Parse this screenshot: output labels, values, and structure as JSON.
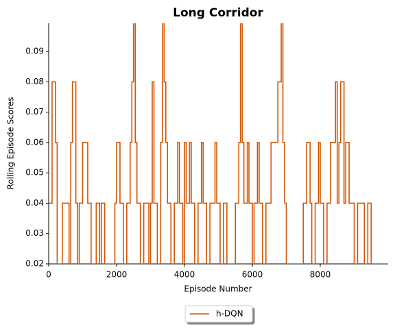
{
  "chart_data": {
    "type": "line",
    "title": "Long Corridor",
    "xlabel": "Episode Number",
    "ylabel": "Rolling Episode Scores",
    "step": "post",
    "x": [
      0,
      60,
      100,
      200,
      250,
      400,
      600,
      650,
      700,
      800,
      850,
      900,
      1000,
      1150,
      1250,
      1400,
      1500,
      1550,
      1650,
      1950,
      2000,
      2100,
      2200,
      2300,
      2400,
      2450,
      2500,
      2550,
      2600,
      2700,
      2800,
      2950,
      3000,
      3050,
      3100,
      3200,
      3300,
      3350,
      3400,
      3450,
      3500,
      3600,
      3700,
      3800,
      3850,
      3950,
      4000,
      4050,
      4150,
      4200,
      4300,
      4400,
      4500,
      4550,
      4650,
      4750,
      4900,
      4950,
      5050,
      5150,
      5250,
      5500,
      5600,
      5650,
      5700,
      5750,
      5850,
      5900,
      6000,
      6050,
      6150,
      6200,
      6300,
      6400,
      6550,
      6750,
      6850,
      6900,
      6950,
      7000,
      7500,
      7600,
      7700,
      7750,
      7850,
      7950,
      8000,
      8100,
      8200,
      8300,
      8450,
      8500,
      8550,
      8600,
      8700,
      8750,
      8850,
      9000,
      9100,
      9300,
      9400,
      9500,
      9999
    ],
    "series": [
      {
        "name": "h-DQN",
        "color": "#d35400",
        "values": [
          0.04,
          0.04,
          0.08,
          0.06,
          0.02,
          0.04,
          0.02,
          0.06,
          0.08,
          0.04,
          0.02,
          0.04,
          0.06,
          0.04,
          0.02,
          0.04,
          0.02,
          0.04,
          0.02,
          0.04,
          0.06,
          0.04,
          0.02,
          0.04,
          0.06,
          0.08,
          0.1,
          0.06,
          0.04,
          0.02,
          0.04,
          0.02,
          0.04,
          0.08,
          0.04,
          0.02,
          0.06,
          0.1,
          0.08,
          0.06,
          0.04,
          0.02,
          0.04,
          0.06,
          0.04,
          0.02,
          0.06,
          0.04,
          0.06,
          0.04,
          0.02,
          0.04,
          0.06,
          0.04,
          0.02,
          0.04,
          0.06,
          0.04,
          0.02,
          0.04,
          0.02,
          0.04,
          0.06,
          0.1,
          0.06,
          0.04,
          0.06,
          0.04,
          0.02,
          0.04,
          0.06,
          0.04,
          0.02,
          0.04,
          0.06,
          0.08,
          0.1,
          0.06,
          0.04,
          0.02,
          0.04,
          0.06,
          0.04,
          0.02,
          0.04,
          0.06,
          0.04,
          0.02,
          0.04,
          0.06,
          0.08,
          0.04,
          0.06,
          0.08,
          0.04,
          0.06,
          0.04,
          0.02,
          0.04,
          0.02,
          0.04,
          0.02,
          0.02
        ]
      }
    ],
    "xlim": [
      0,
      10000
    ],
    "ylim": [
      0.02,
      0.0993
    ],
    "xticks": [
      0,
      2000,
      4000,
      6000,
      8000
    ],
    "yticks": [
      0.02,
      0.03,
      0.04,
      0.05,
      0.06,
      0.07,
      0.08,
      0.09
    ],
    "legend": "bottom"
  }
}
